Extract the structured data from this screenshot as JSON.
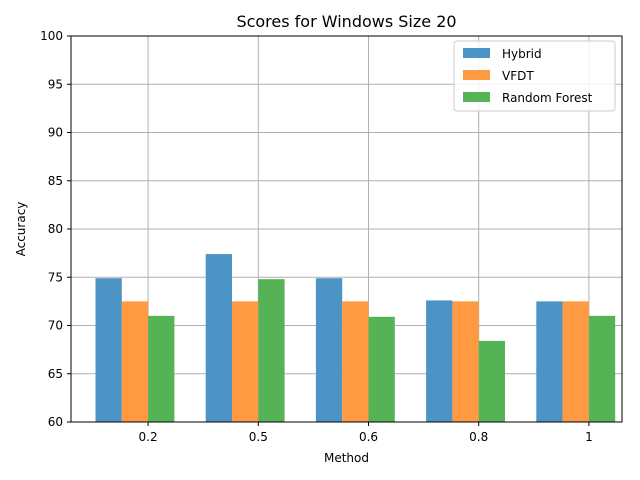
{
  "chart_data": {
    "type": "bar",
    "title": "Scores for Windows Size 20",
    "xlabel": "Method",
    "ylabel": "Accuracy",
    "categories": [
      "0.2",
      "0.5",
      "0.6",
      "0.8",
      "1"
    ],
    "ylim": [
      60,
      100
    ],
    "yticks": [
      60,
      65,
      70,
      75,
      80,
      85,
      90,
      95,
      100
    ],
    "grid": true,
    "legend_position": "top-right",
    "series": [
      {
        "name": "Hybrid",
        "color": "#4c93c6",
        "values": [
          74.9,
          77.4,
          74.9,
          72.6,
          72.5
        ]
      },
      {
        "name": "VFDT",
        "color": "#ff9a43",
        "values": [
          72.5,
          72.5,
          72.5,
          72.5,
          72.5
        ]
      },
      {
        "name": "Random Forest",
        "color": "#55b356",
        "values": [
          71.0,
          74.8,
          70.9,
          68.4,
          71.0
        ]
      }
    ]
  }
}
